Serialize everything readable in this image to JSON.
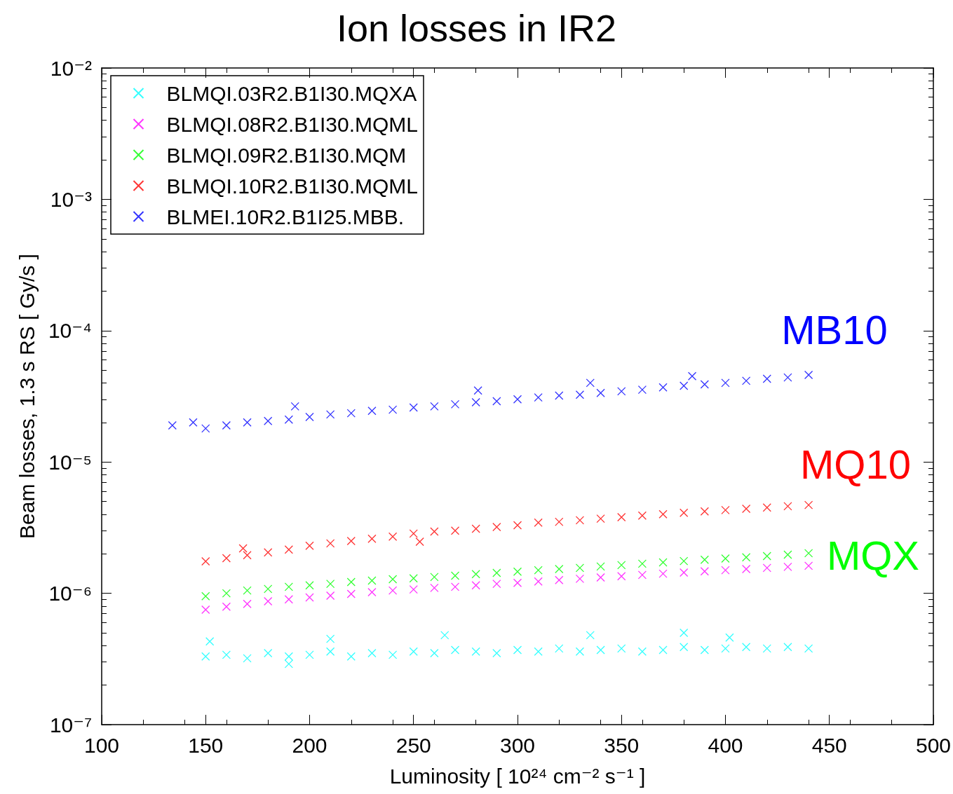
{
  "chart_data": {
    "type": "scatter",
    "title": "Ion losses in IR2",
    "xlabel": "Luminosity [ 10²⁴ cm⁻² s⁻¹ ]",
    "ylabel": "Beam losses, 1.3 s RS [ Gy/s ]",
    "log": "y",
    "xlim": [
      100,
      500
    ],
    "xticks": [
      100,
      150,
      200,
      250,
      300,
      350,
      400,
      450,
      500
    ],
    "ylim": [
      1e-07,
      0.01
    ],
    "yticks": [
      {
        "value": 1e-07,
        "label": "10⁻⁷"
      },
      {
        "value": 1e-06,
        "label": "10⁻⁶"
      },
      {
        "value": 1e-05,
        "label": "10⁻⁵"
      },
      {
        "value": 0.0001,
        "label": "10⁻⁴"
      },
      {
        "value": 0.001,
        "label": "10⁻³"
      },
      {
        "value": 0.01,
        "label": "10⁻²"
      }
    ],
    "grid": false,
    "legend": "top left",
    "marker": "cross",
    "series": [
      {
        "name": "BLMQI.03R2.B1I30.MQXA",
        "color": "#00ffff",
        "x": [
          150,
          160,
          170,
          180,
          190,
          200,
          210,
          220,
          230,
          240,
          250,
          260,
          270,
          280,
          290,
          300,
          310,
          320,
          330,
          340,
          350,
          360,
          370,
          380,
          390,
          400,
          410,
          420,
          430,
          440,
          152,
          210,
          265,
          335,
          380,
          402,
          190
        ],
        "values": [
          3.3e-07,
          3.4e-07,
          3.2e-07,
          3.5e-07,
          3.3e-07,
          3.4e-07,
          3.6e-07,
          3.3e-07,
          3.5e-07,
          3.4e-07,
          3.6e-07,
          3.5e-07,
          3.7e-07,
          3.6e-07,
          3.5e-07,
          3.7e-07,
          3.6e-07,
          3.8e-07,
          3.6e-07,
          3.7e-07,
          3.8e-07,
          3.6e-07,
          3.7e-07,
          3.9e-07,
          3.7e-07,
          3.8e-07,
          3.9e-07,
          3.8e-07,
          3.9e-07,
          3.8e-07,
          4.3e-07,
          4.5e-07,
          4.8e-07,
          4.8e-07,
          5e-07,
          4.6e-07,
          2.9e-07
        ]
      },
      {
        "name": "BLMQI.08R2.B1I30.MQML",
        "color": "#ff00ff",
        "x": [
          150,
          160,
          170,
          180,
          190,
          200,
          210,
          220,
          230,
          240,
          250,
          260,
          270,
          280,
          290,
          300,
          310,
          320,
          330,
          340,
          350,
          360,
          370,
          380,
          390,
          400,
          410,
          420,
          430,
          440
        ],
        "values": [
          7.5e-07,
          7.9e-07,
          8.3e-07,
          8.7e-07,
          9e-07,
          9.3e-07,
          9.6e-07,
          9.9e-07,
          1.02e-06,
          1.05e-06,
          1.07e-06,
          1.1e-06,
          1.12e-06,
          1.15e-06,
          1.18e-06,
          1.2e-06,
          1.23e-06,
          1.26e-06,
          1.29e-06,
          1.32e-06,
          1.35e-06,
          1.38e-06,
          1.41e-06,
          1.44e-06,
          1.47e-06,
          1.5e-06,
          1.53e-06,
          1.56e-06,
          1.59e-06,
          1.62e-06
        ]
      },
      {
        "name": "BLMQI.09R2.B1I30.MQM",
        "color": "#00ff00",
        "x": [
          150,
          160,
          170,
          180,
          190,
          200,
          210,
          220,
          230,
          240,
          250,
          260,
          270,
          280,
          290,
          300,
          310,
          320,
          330,
          340,
          350,
          360,
          370,
          380,
          390,
          400,
          410,
          420,
          430,
          440
        ],
        "values": [
          9.5e-07,
          1e-06,
          1.05e-06,
          1.08e-06,
          1.12e-06,
          1.15e-06,
          1.18e-06,
          1.22e-06,
          1.25e-06,
          1.28e-06,
          1.3e-06,
          1.33e-06,
          1.36e-06,
          1.4e-06,
          1.43e-06,
          1.46e-06,
          1.5e-06,
          1.53e-06,
          1.56e-06,
          1.6e-06,
          1.64e-06,
          1.68e-06,
          1.72e-06,
          1.76e-06,
          1.8e-06,
          1.84e-06,
          1.88e-06,
          1.92e-06,
          1.97e-06,
          2.02e-06
        ]
      },
      {
        "name": "BLMQI.10R2.B1I30.MQML",
        "color": "#ff0000",
        "x": [
          150,
          160,
          170,
          180,
          190,
          200,
          210,
          220,
          230,
          240,
          250,
          260,
          270,
          280,
          290,
          300,
          310,
          320,
          330,
          340,
          350,
          360,
          370,
          380,
          390,
          400,
          410,
          420,
          430,
          440,
          168,
          253
        ],
        "values": [
          1.75e-06,
          1.85e-06,
          1.95e-06,
          2.05e-06,
          2.15e-06,
          2.3e-06,
          2.4e-06,
          2.5e-06,
          2.6e-06,
          2.7e-06,
          2.85e-06,
          2.95e-06,
          3e-06,
          3.1e-06,
          3.2e-06,
          3.3e-06,
          3.45e-06,
          3.5e-06,
          3.6e-06,
          3.7e-06,
          3.8e-06,
          3.9e-06,
          4e-06,
          4.1e-06,
          4.2e-06,
          4.3e-06,
          4.4e-06,
          4.5e-06,
          4.6e-06,
          4.7e-06,
          2.2e-06,
          2.47e-06
        ]
      },
      {
        "name": "BLMEI.10R2.B1I25.MBB.",
        "color": "#0000ff",
        "x": [
          134,
          144,
          150,
          160,
          170,
          180,
          190,
          200,
          210,
          220,
          230,
          240,
          250,
          260,
          270,
          280,
          290,
          300,
          310,
          320,
          330,
          340,
          350,
          360,
          370,
          380,
          390,
          400,
          410,
          420,
          430,
          440,
          193,
          281,
          335,
          384
        ],
        "values": [
          1.9e-05,
          2e-05,
          1.8e-05,
          1.9e-05,
          2e-05,
          2.05e-05,
          2.1e-05,
          2.2e-05,
          2.3e-05,
          2.35e-05,
          2.45e-05,
          2.5e-05,
          2.6e-05,
          2.65e-05,
          2.75e-05,
          2.85e-05,
          2.9e-05,
          3e-05,
          3.1e-05,
          3.2e-05,
          3.25e-05,
          3.35e-05,
          3.45e-05,
          3.55e-05,
          3.7e-05,
          3.8e-05,
          3.9e-05,
          4e-05,
          4.15e-05,
          4.3e-05,
          4.4e-05,
          4.6e-05,
          2.65e-05,
          3.5e-05,
          4e-05,
          4.5e-05
        ]
      }
    ],
    "annotations": [
      "MB10",
      "MQ10",
      "MQX"
    ]
  }
}
